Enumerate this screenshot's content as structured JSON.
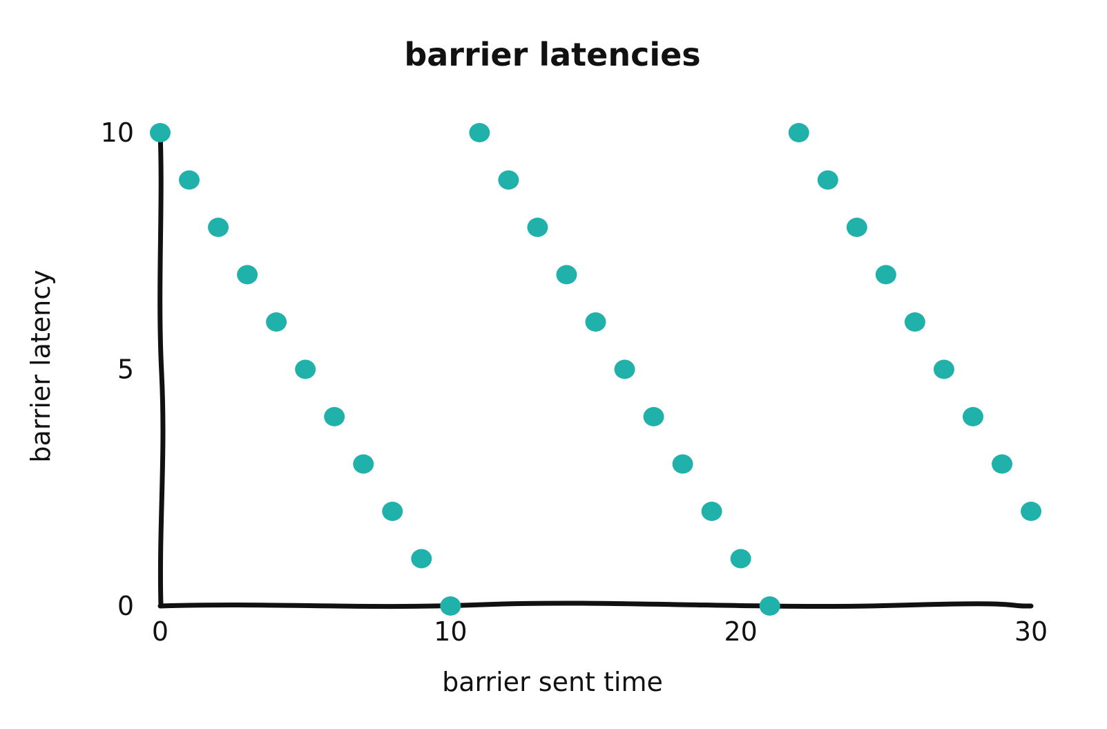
{
  "chart_data": {
    "type": "scatter",
    "title": "barrier latencies",
    "xlabel": "barrier sent time",
    "ylabel": "barrier latency",
    "xlim": [
      0,
      30
    ],
    "ylim": [
      0,
      10
    ],
    "xticks": [
      "0",
      "10",
      "20",
      "30"
    ],
    "yticks": [
      "0",
      "5",
      "10"
    ],
    "grid": false,
    "legend": "none",
    "marker_color": "#20b2aa",
    "x": [
      0,
      1,
      2,
      3,
      4,
      5,
      6,
      7,
      8,
      9,
      10,
      11,
      12,
      13,
      14,
      15,
      16,
      17,
      18,
      19,
      20,
      21,
      22,
      23,
      24,
      25,
      26,
      27,
      28,
      29,
      30
    ],
    "y": [
      10,
      9,
      8,
      7,
      6,
      5,
      4,
      3,
      2,
      1,
      0,
      10,
      9,
      8,
      7,
      6,
      5,
      4,
      3,
      2,
      1,
      0,
      10,
      9,
      8,
      7,
      6,
      5,
      4,
      3,
      2
    ]
  }
}
